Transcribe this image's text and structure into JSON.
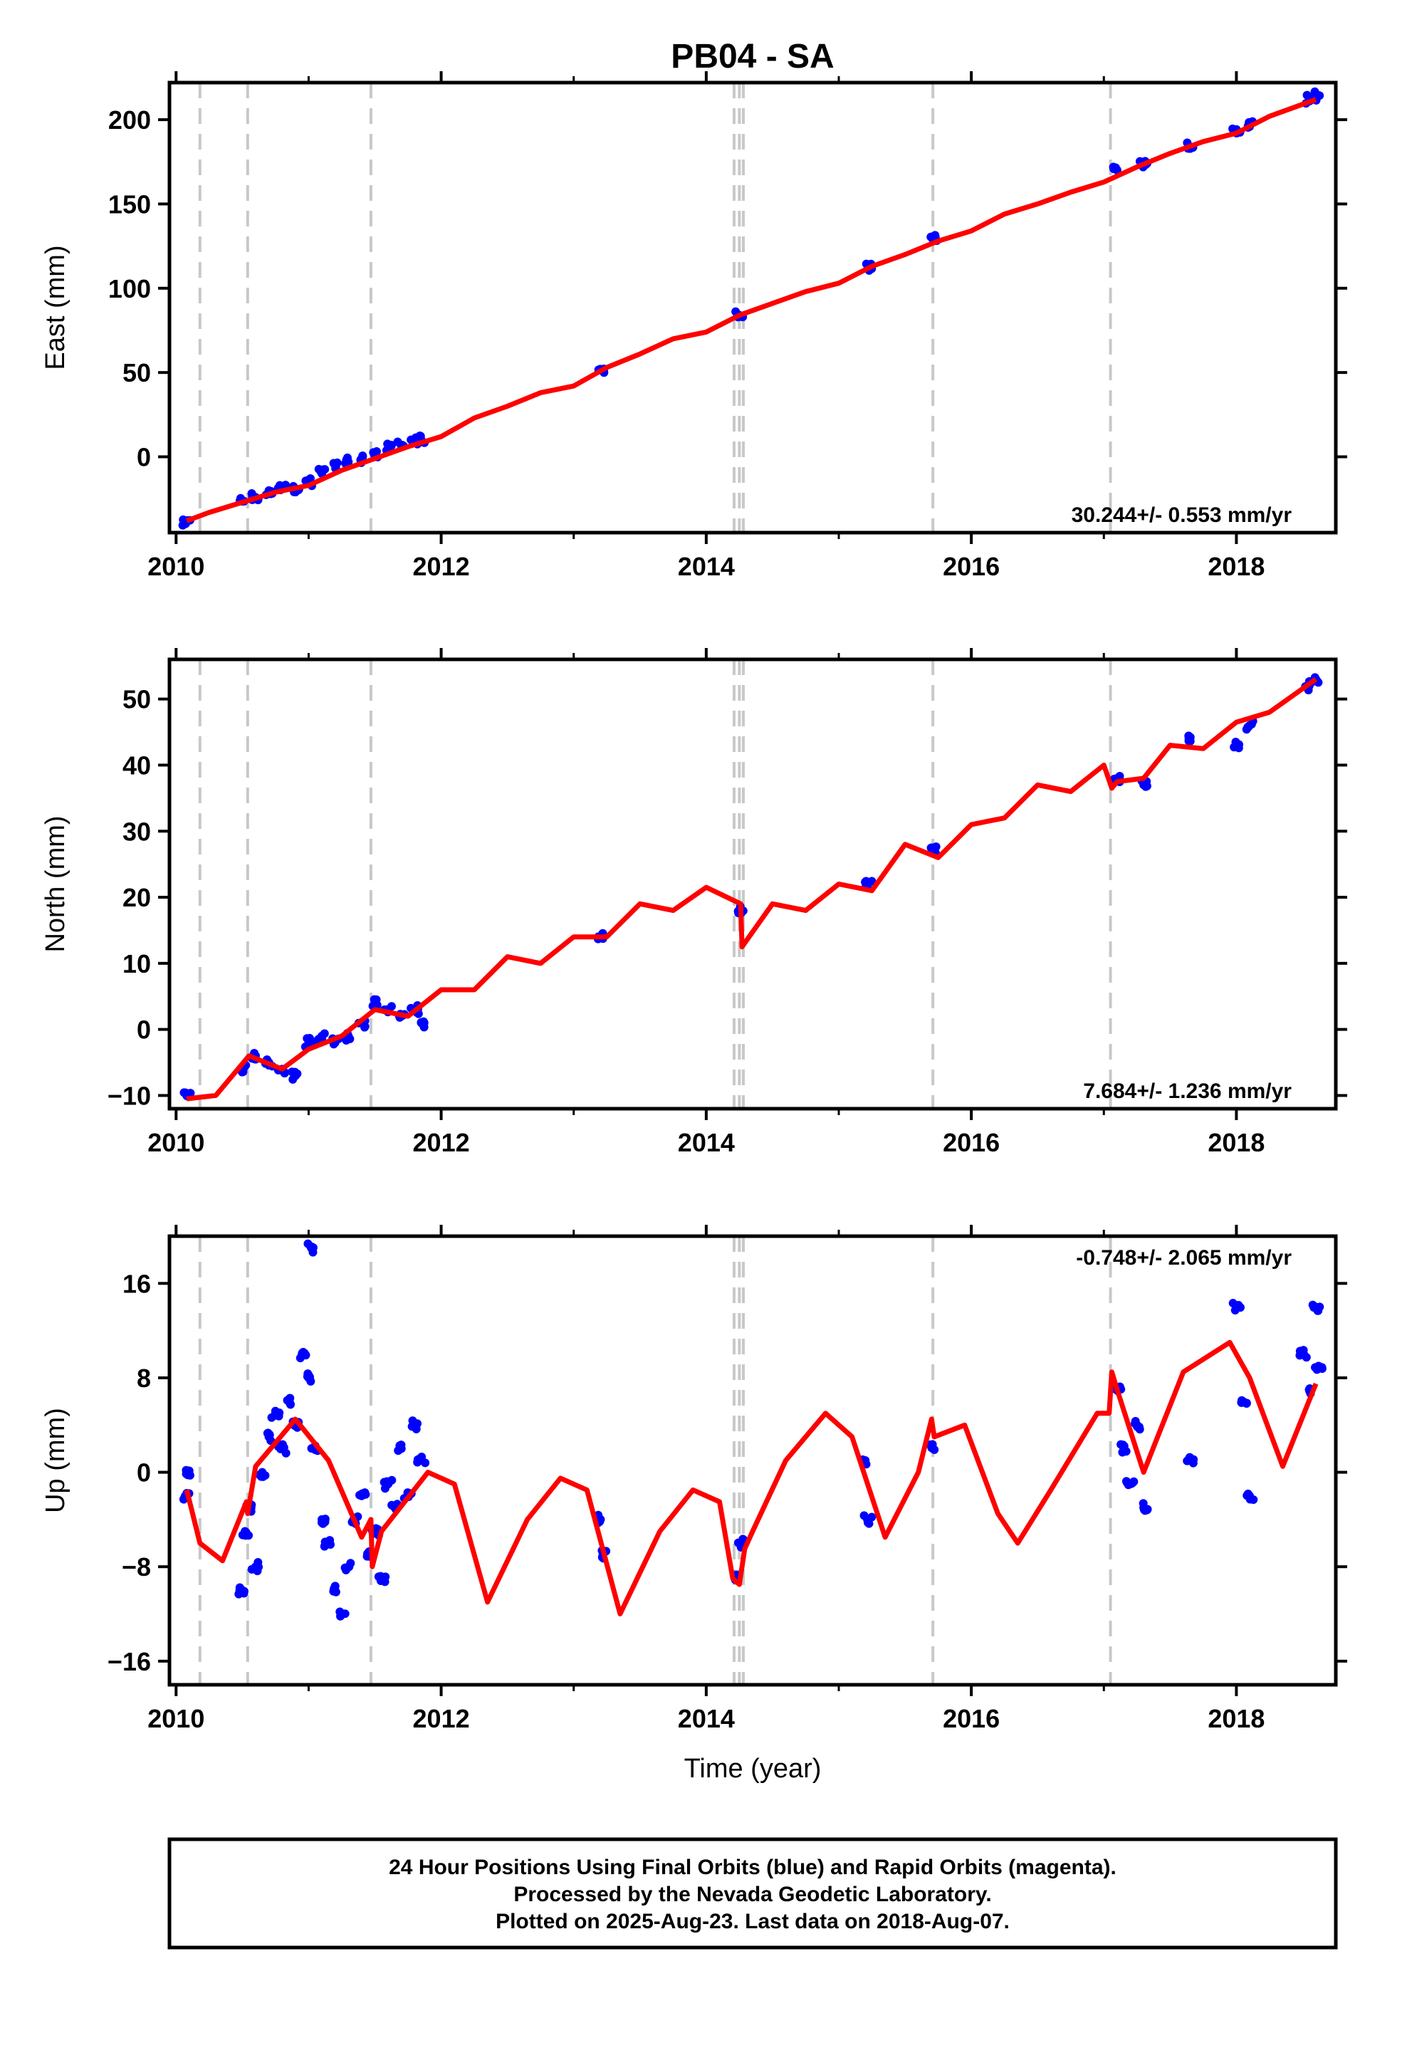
{
  "title": "PB04 - SA",
  "footer": {
    "line1": "24 Hour Positions Using Final Orbits (blue) and Rapid Orbits (magenta).",
    "line2": "Processed by the Nevada Geodetic Laboratory.",
    "line3": "Plotted on 2025-Aug-23. Last data on 2018-Aug-07."
  },
  "colors": {
    "data": "#0000ff",
    "model": "#ff0000",
    "event": "#c8c8c8",
    "frame": "#000000"
  },
  "chart_data": [
    {
      "type": "scatter",
      "ylabel": "East (mm)",
      "xlabel": "",
      "rate_label": "30.244+/- 0.553 mm/yr",
      "xlim": [
        2009.95,
        2018.75
      ],
      "ylim": [
        -45,
        222
      ],
      "x_ticks": [
        "2010",
        "2012",
        "2014",
        "2016",
        "2018"
      ],
      "y_ticks": [
        "200",
        "150",
        "100",
        "50",
        "0"
      ],
      "event_lines": [
        2010.18,
        2010.54,
        2011.47,
        2014.21,
        2014.25,
        2014.28,
        2015.71,
        2017.05
      ],
      "series": [
        {
          "kind": "points",
          "x": [
            2010.08,
            2010.5,
            2010.6,
            2010.7,
            2010.8,
            2010.9,
            2011.0,
            2011.1,
            2011.2,
            2011.3,
            2011.4,
            2011.5,
            2011.6,
            2011.7,
            2011.8,
            2011.85,
            2013.2,
            2014.25,
            2015.22,
            2015.71,
            2017.1,
            2017.3,
            2017.65,
            2018.0,
            2018.1,
            2018.55,
            2018.6
          ],
          "y": [
            -38,
            -26,
            -24,
            -20,
            -18,
            -19,
            -15,
            -10,
            -5,
            -3,
            -1,
            2,
            5,
            7,
            9,
            10,
            52,
            84,
            112,
            129,
            170,
            174,
            184,
            194,
            197,
            212,
            214
          ]
        },
        {
          "kind": "model",
          "x": [
            2010.08,
            2010.25,
            2010.5,
            2010.75,
            2011.0,
            2011.25,
            2011.5,
            2011.75,
            2012.0,
            2012.25,
            2012.5,
            2012.75,
            2013.0,
            2013.25,
            2013.5,
            2013.75,
            2014.0,
            2014.25,
            2014.5,
            2014.75,
            2015.0,
            2015.25,
            2015.5,
            2015.75,
            2016.0,
            2016.25,
            2016.5,
            2016.75,
            2017.0,
            2017.25,
            2017.5,
            2017.75,
            2018.0,
            2018.25,
            2018.6
          ],
          "y": [
            -38,
            -33,
            -27,
            -21,
            -17,
            -8,
            -1,
            6,
            12,
            23,
            30,
            38,
            42,
            53,
            61,
            70,
            74,
            84,
            91,
            98,
            103,
            113,
            120,
            128,
            134,
            144,
            150,
            157,
            163,
            172,
            180,
            187,
            192,
            202,
            212
          ]
        }
      ]
    },
    {
      "type": "scatter",
      "ylabel": "North (mm)",
      "xlabel": "",
      "rate_label": "7.684+/- 1.236 mm/yr",
      "xlim": [
        2009.95,
        2018.75
      ],
      "ylim": [
        -12,
        56
      ],
      "x_ticks": [
        "2010",
        "2012",
        "2014",
        "2016",
        "2018"
      ],
      "y_ticks": [
        "50",
        "40",
        "30",
        "20",
        "10",
        "0",
        "−10"
      ],
      "event_lines": [
        2010.18,
        2010.54,
        2011.47,
        2014.21,
        2014.25,
        2014.28,
        2015.71,
        2017.05
      ],
      "series": [
        {
          "kind": "points",
          "x": [
            2010.08,
            2010.5,
            2010.6,
            2010.7,
            2010.8,
            2010.9,
            2011.0,
            2011.1,
            2011.2,
            2011.3,
            2011.4,
            2011.5,
            2011.6,
            2011.7,
            2011.8,
            2011.85,
            2013.2,
            2014.25,
            2015.22,
            2015.71,
            2017.1,
            2017.3,
            2017.65,
            2018.0,
            2018.1,
            2018.55,
            2018.6
          ],
          "y": [
            -10,
            -6,
            -4,
            -5,
            -6,
            -7,
            -2,
            -1,
            -2,
            -1,
            1,
            4,
            3,
            2,
            3,
            1,
            14,
            18,
            22,
            27,
            38,
            37,
            44,
            43,
            46,
            52,
            53
          ]
        },
        {
          "kind": "model",
          "x": [
            2010.08,
            2010.3,
            2010.55,
            2010.8,
            2011.0,
            2011.25,
            2011.5,
            2011.75,
            2012.0,
            2012.25,
            2012.5,
            2012.75,
            2013.0,
            2013.25,
            2013.5,
            2013.75,
            2014.0,
            2014.26,
            2014.27,
            2014.5,
            2014.75,
            2015.0,
            2015.25,
            2015.5,
            2015.75,
            2016.0,
            2016.25,
            2016.5,
            2016.75,
            2017.0,
            2017.06,
            2017.1,
            2017.3,
            2017.5,
            2017.75,
            2018.0,
            2018.25,
            2018.6
          ],
          "y": [
            -10.5,
            -10,
            -4,
            -6,
            -3,
            -1,
            3,
            2,
            6,
            6,
            11,
            10,
            14,
            14,
            19,
            18,
            21.5,
            19,
            12.5,
            19,
            18,
            22,
            21,
            28,
            26,
            31,
            32,
            37,
            36,
            40,
            36.5,
            37.5,
            38,
            43,
            42.5,
            46.5,
            48,
            53
          ]
        }
      ]
    },
    {
      "type": "scatter",
      "ylabel": "Up (mm)",
      "xlabel": "Time (year)",
      "rate_label": "-0.748+/- 2.065 mm/yr",
      "xlim": [
        2009.95,
        2018.75
      ],
      "ylim": [
        -18,
        20
      ],
      "x_ticks": [
        "2010",
        "2012",
        "2014",
        "2016",
        "2018"
      ],
      "y_ticks": [
        "16",
        "8",
        "0",
        "−8",
        "−16"
      ],
      "event_lines": [
        2010.18,
        2010.54,
        2011.47,
        2014.21,
        2014.25,
        2014.28,
        2015.71,
        2017.05
      ],
      "series": [
        {
          "kind": "points",
          "x": [
            2010.08,
            2010.08,
            2010.5,
            2010.52,
            2010.55,
            2010.6,
            2010.65,
            2010.7,
            2010.75,
            2010.8,
            2010.85,
            2010.9,
            2010.95,
            2011.0,
            2011.02,
            2011.05,
            2011.1,
            2011.15,
            2011.2,
            2011.25,
            2011.3,
            2011.35,
            2011.4,
            2011.45,
            2011.5,
            2011.55,
            2011.6,
            2011.65,
            2011.7,
            2011.75,
            2011.8,
            2011.85,
            2013.2,
            2013.22,
            2014.22,
            2014.26,
            2015.2,
            2015.22,
            2015.71,
            2017.1,
            2017.15,
            2017.2,
            2017.25,
            2017.3,
            2017.65,
            2018.0,
            2018.05,
            2018.1,
            2018.5,
            2018.55,
            2018.6,
            2018.62
          ],
          "y": [
            0,
            -2,
            -10,
            -5,
            -3,
            -8,
            0,
            3,
            5,
            2,
            6,
            4,
            10,
            8,
            19,
            2,
            -4,
            -6,
            -10,
            -12,
            -8,
            -4,
            -2,
            -7,
            -5,
            -9,
            -1,
            -3,
            2,
            -2,
            4,
            1,
            -4,
            -7,
            -9,
            -6,
            1,
            -4,
            2,
            7,
            2,
            -1,
            4,
            -3,
            1,
            14,
            6,
            -2,
            10,
            7,
            14,
            9
          ]
        },
        {
          "kind": "model",
          "x": [
            2010.08,
            2010.18,
            2010.35,
            2010.53,
            2010.54,
            2010.6,
            2010.9,
            2011.15,
            2011.4,
            2011.47,
            2011.48,
            2011.55,
            2011.9,
            2012.1,
            2012.35,
            2012.65,
            2012.9,
            2013.1,
            2013.35,
            2013.65,
            2013.9,
            2014.1,
            2014.2,
            2014.25,
            2014.29,
            2014.35,
            2014.6,
            2014.9,
            2015.1,
            2015.35,
            2015.6,
            2015.7,
            2015.72,
            2015.95,
            2016.2,
            2016.35,
            2016.6,
            2016.95,
            2017.04,
            2017.06,
            2017.1,
            2017.3,
            2017.6,
            2017.95,
            2018.1,
            2018.35,
            2018.6
          ],
          "y": [
            -1.5,
            -6,
            -7.5,
            -2.5,
            -3.5,
            0.5,
            4.5,
            1,
            -5.5,
            -4,
            -8,
            -5,
            0,
            -1,
            -11,
            -4,
            -0.5,
            -1.5,
            -12,
            -5,
            -1.5,
            -2.5,
            -9,
            -9.5,
            -6.5,
            -5,
            1,
            5,
            3,
            -5.5,
            0,
            4.5,
            3,
            4,
            -3.5,
            -6,
            -1.5,
            5,
            5,
            8.5,
            7,
            0,
            8.5,
            11,
            8,
            0.5,
            7.5
          ]
        }
      ]
    }
  ]
}
